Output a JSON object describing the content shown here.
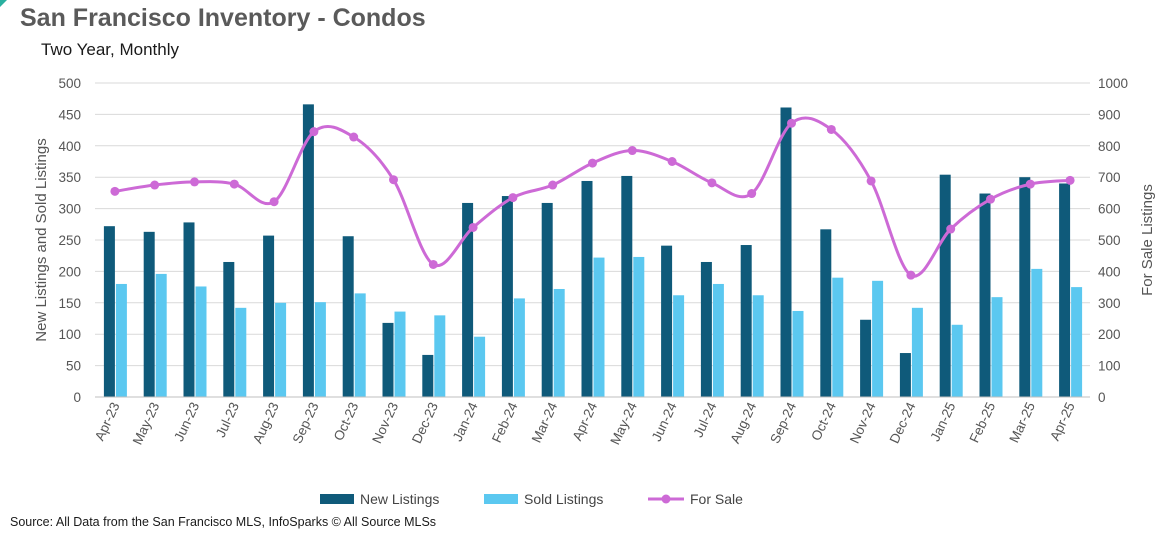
{
  "title": "San Francisco Inventory - Condos",
  "subtitle": "Two Year, Monthly",
  "source": "Source: All Data from the San Francisco MLS, InfoSparks © All Source MLSs",
  "colors": {
    "new": "#0f5a7a",
    "sold": "#5bc8f0",
    "forsale": "#cd6ad6",
    "grid": "#d9d9d9"
  },
  "chart_data": {
    "type": "bar",
    "categories": [
      "Apr-23",
      "May-23",
      "Jun-23",
      "Jul-23",
      "Aug-23",
      "Sep-23",
      "Oct-23",
      "Nov-23",
      "Dec-23",
      "Jan-24",
      "Feb-24",
      "Mar-24",
      "Apr-24",
      "May-24",
      "Jun-24",
      "Jul-24",
      "Aug-24",
      "Sep-24",
      "Oct-24",
      "Nov-24",
      "Dec-24",
      "Jan-25",
      "Feb-25",
      "Mar-25",
      "Apr-25"
    ],
    "series": [
      {
        "name": "New Listings",
        "kind": "bar",
        "axis": "left",
        "values": [
          272,
          263,
          278,
          215,
          257,
          466,
          256,
          118,
          67,
          309,
          320,
          309,
          344,
          352,
          241,
          215,
          242,
          461,
          267,
          123,
          70,
          354,
          324,
          350,
          340
        ]
      },
      {
        "name": "Sold Listings",
        "kind": "bar",
        "axis": "left",
        "values": [
          180,
          196,
          176,
          142,
          150,
          151,
          165,
          136,
          130,
          96,
          157,
          172,
          222,
          223,
          162,
          180,
          162,
          137,
          190,
          185,
          142,
          115,
          159,
          204,
          175
        ]
      },
      {
        "name": "For Sale",
        "kind": "line",
        "axis": "right",
        "values": [
          655,
          675,
          685,
          678,
          622,
          845,
          828,
          692,
          422,
          540,
          635,
          675,
          745,
          785,
          750,
          682,
          648,
          872,
          852,
          688,
          388,
          535,
          630,
          678,
          690
        ]
      }
    ],
    "ylabel": "New Listings and Sold Listings",
    "y2label": "For Sale Listings",
    "ylim": [
      0,
      500
    ],
    "y2lim": [
      0,
      1000
    ],
    "yticks": [
      0,
      50,
      100,
      150,
      200,
      250,
      300,
      350,
      400,
      450,
      500
    ],
    "y2ticks": [
      0,
      100,
      200,
      300,
      400,
      500,
      600,
      700,
      800,
      900,
      1000
    ],
    "grid": true,
    "legend": "bottom"
  }
}
